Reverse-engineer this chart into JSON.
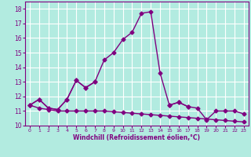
{
  "x": [
    0,
    1,
    2,
    3,
    4,
    5,
    6,
    7,
    8,
    9,
    10,
    11,
    12,
    13,
    14,
    15,
    16,
    17,
    18,
    19,
    20,
    21,
    22,
    23
  ],
  "line_main": [
    11.4,
    11.8,
    11.2,
    11.1,
    11.8,
    13.1,
    12.6,
    13.0,
    14.5,
    15.0,
    15.9,
    16.4,
    17.7,
    17.8,
    13.6,
    11.4,
    11.6,
    11.3,
    11.2,
    10.4,
    11.0,
    11.0,
    11.0,
    10.8
  ],
  "line2": [
    11.4,
    11.8,
    11.2,
    11.1,
    11.8,
    13.1,
    12.6,
    13.0,
    null,
    null,
    null,
    null,
    null,
    null,
    null,
    11.4,
    11.6,
    11.3,
    null,
    null,
    null,
    null,
    null,
    null
  ],
  "line3": [
    11.4,
    11.2,
    11.1,
    11.0,
    11.0,
    11.0,
    11.0,
    11.0,
    11.0,
    10.95,
    10.9,
    10.85,
    10.8,
    10.75,
    10.7,
    10.65,
    10.6,
    10.55,
    10.5,
    10.45,
    10.4,
    10.35,
    10.3,
    10.25
  ],
  "line_color": "#800080",
  "bg_color": "#b2ebe0",
  "grid_color": "#c8e8e0",
  "xlabel": "Windchill (Refroidissement éolien,°C)",
  "xlim_min": -0.5,
  "xlim_max": 23.5,
  "ylim_min": 10.0,
  "ylim_max": 18.5,
  "yticks": [
    10,
    11,
    12,
    13,
    14,
    15,
    16,
    17,
    18
  ],
  "xticks": [
    0,
    1,
    2,
    3,
    4,
    5,
    6,
    7,
    8,
    9,
    10,
    11,
    12,
    13,
    14,
    15,
    16,
    17,
    18,
    19,
    20,
    21,
    22,
    23
  ],
  "marker": "D",
  "markersize": 2.5,
  "linewidth": 1.0
}
